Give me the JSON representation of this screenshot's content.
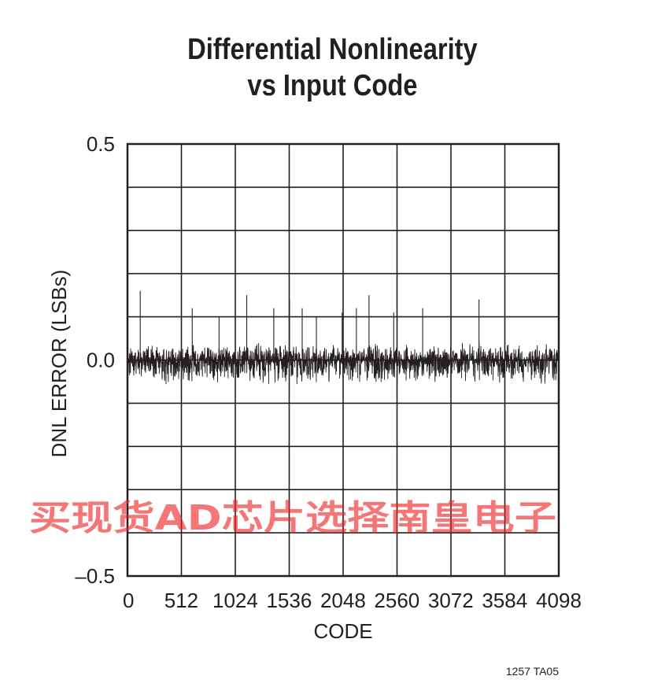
{
  "chart_data": {
    "type": "line",
    "title": "Differential Nonlinearity",
    "subtitle": "vs Input Code",
    "xlabel": "CODE",
    "ylabel": "DNL ERROR (LSBs)",
    "xlim": [
      0,
      4098
    ],
    "ylim": [
      -0.5,
      0.5
    ],
    "x_ticks": [
      0,
      512,
      1024,
      1536,
      2048,
      2560,
      3072,
      3584,
      4098
    ],
    "x_tick_labels": [
      "0",
      "512",
      "1024",
      "1536",
      "2048",
      "2560",
      "3072",
      "3584",
      "4098"
    ],
    "y_ticks": [
      0.5,
      0.0,
      -0.5
    ],
    "y_tick_labels": [
      "0.5",
      "0.0",
      "–0.5"
    ],
    "grid": true,
    "grid_divisions": {
      "x": 8,
      "y": 10
    },
    "series": [
      {
        "noise_band": [
          -0.06,
          0.04
        ],
        "spikes": [
          {
            "x": 121,
            "y": 0.16
          },
          {
            "x": 615,
            "y": 0.12
          },
          {
            "x": 870,
            "y": 0.1
          },
          {
            "x": 1133,
            "y": 0.15
          },
          {
            "x": 1390,
            "y": 0.12
          },
          {
            "x": 1540,
            "y": 0.14
          },
          {
            "x": 1660,
            "y": 0.12
          },
          {
            "x": 1795,
            "y": 0.1
          },
          {
            "x": 2040,
            "y": 0.11
          },
          {
            "x": 2175,
            "y": 0.12
          },
          {
            "x": 2295,
            "y": 0.15
          },
          {
            "x": 2530,
            "y": 0.11
          },
          {
            "x": 2805,
            "y": 0.12
          },
          {
            "x": 3340,
            "y": 0.14
          }
        ]
      }
    ],
    "color": "#231f20"
  },
  "figure_id": "1257 TA05",
  "watermark": "买现货AD芯片选择南皇电子"
}
